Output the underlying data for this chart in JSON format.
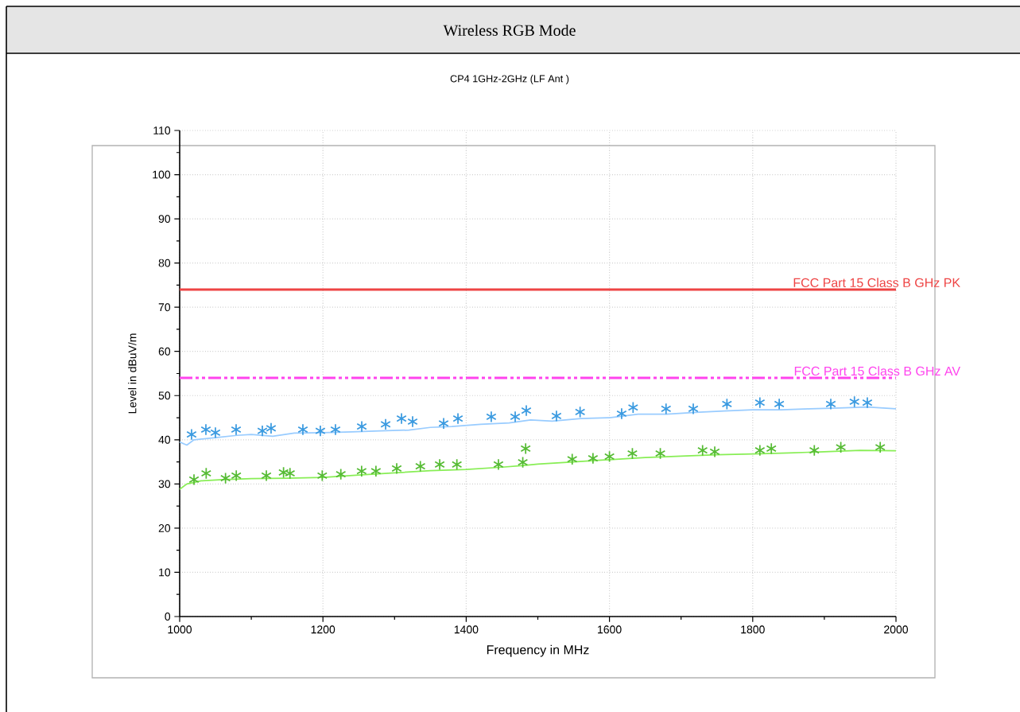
{
  "chart_data": {
    "type": "line",
    "title": "Wireless RGB Mode",
    "subtitle": "CP4 1GHz-2GHz (LF Ant )",
    "xlabel": "Frequency in MHz",
    "ylabel": "Level in dBuV/m",
    "xlim": [
      1000,
      2000
    ],
    "ylim": [
      0,
      110
    ],
    "xticks": [
      1000,
      1200,
      1400,
      1600,
      1800,
      2000
    ],
    "yticks": [
      0,
      10,
      20,
      30,
      40,
      50,
      60,
      70,
      80,
      90,
      100,
      110
    ],
    "grid": true,
    "series": [
      {
        "marker": "none",
        "color": "#99ccff",
        "x": [
          1000,
          1010,
          1020,
          1050,
          1080,
          1100,
          1130,
          1160,
          1200,
          1240,
          1280,
          1320,
          1350,
          1380,
          1420,
          1460,
          1490,
          1520,
          1560,
          1600,
          1640,
          1680,
          1720,
          1760,
          1800,
          1840,
          1880,
          1920,
          1960,
          2000
        ],
        "values": [
          39.5,
          38.8,
          40,
          40.5,
          41,
          41.2,
          40.8,
          41.5,
          41.6,
          41.8,
          42,
          42.2,
          42.8,
          43,
          43.5,
          43.8,
          44.5,
          44.2,
          44.8,
          45,
          45.8,
          45.8,
          46.2,
          46.5,
          46.8,
          46.8,
          47,
          47.2,
          47.4,
          47
        ]
      },
      {
        "marker": "none",
        "color": "#88ee55",
        "x": [
          1000,
          1010,
          1030,
          1060,
          1100,
          1150,
          1200,
          1250,
          1300,
          1350,
          1400,
          1450,
          1480,
          1500,
          1550,
          1600,
          1650,
          1700,
          1750,
          1800,
          1850,
          1900,
          1950,
          2000
        ],
        "values": [
          28.8,
          30,
          30.7,
          31,
          31.2,
          31.3,
          31.5,
          32,
          32.5,
          33,
          33.3,
          33.8,
          34.2,
          34.5,
          35,
          35.5,
          36,
          36.3,
          36.6,
          36.8,
          37,
          37.3,
          37.6,
          37.5
        ]
      },
      {
        "type": "scatter",
        "marker": "cross",
        "color": "#3a9ae0",
        "x": [
          1016.6,
          1036.6,
          1049.9,
          1078.8,
          1115.4,
          1127.6,
          1172,
          1196.4,
          1217.5,
          1254.2,
          1287.5,
          1309.7,
          1325.2,
          1368.5,
          1388.5,
          1435,
          1468.4,
          1483.9,
          1526,
          1559,
          1617,
          1633,
          1679,
          1717,
          1764,
          1810,
          1837,
          1909,
          1942,
          1960
        ],
        "values": [
          41.2,
          42.3,
          41.6,
          42.3,
          42.0,
          42.6,
          42.3,
          42.0,
          42.3,
          43.0,
          43.5,
          44.8,
          44.1,
          43.7,
          44.8,
          45.2,
          45.2,
          46.6,
          45.4,
          46.3,
          45.9,
          47.3,
          47.0,
          47.0,
          48.1,
          48.4,
          48.1,
          48.1,
          48.6,
          48.4
        ]
      },
      {
        "type": "scatter",
        "marker": "cross",
        "color": "#55bb33",
        "x": [
          1020,
          1037,
          1064,
          1079,
          1121,
          1145,
          1154,
          1199,
          1225,
          1254,
          1274,
          1303,
          1336,
          1363,
          1387,
          1445,
          1479,
          1483,
          1548,
          1577,
          1600,
          1632,
          1671,
          1730,
          1747,
          1810,
          1826,
          1886,
          1923,
          1978
        ],
        "values": [
          31.0,
          32.4,
          31.3,
          31.9,
          31.9,
          32.6,
          32.4,
          31.9,
          32.2,
          32.9,
          32.9,
          33.5,
          34.0,
          34.4,
          34.4,
          34.4,
          34.9,
          38.0,
          35.6,
          35.8,
          36.2,
          36.9,
          36.9,
          37.6,
          37.3,
          37.6,
          38.0,
          37.6,
          38.3,
          38.3
        ]
      }
    ],
    "ref_lines": [
      {
        "axis": "y",
        "value": 74,
        "label": "FCC Part 15 Class B GHz PK",
        "color": "#ee4444",
        "line_style": "solid"
      },
      {
        "axis": "y",
        "value": 54,
        "label": "FCC Part 15 Class B GHz AV",
        "color": "#ff44ee",
        "line_style": "dashed"
      }
    ]
  }
}
